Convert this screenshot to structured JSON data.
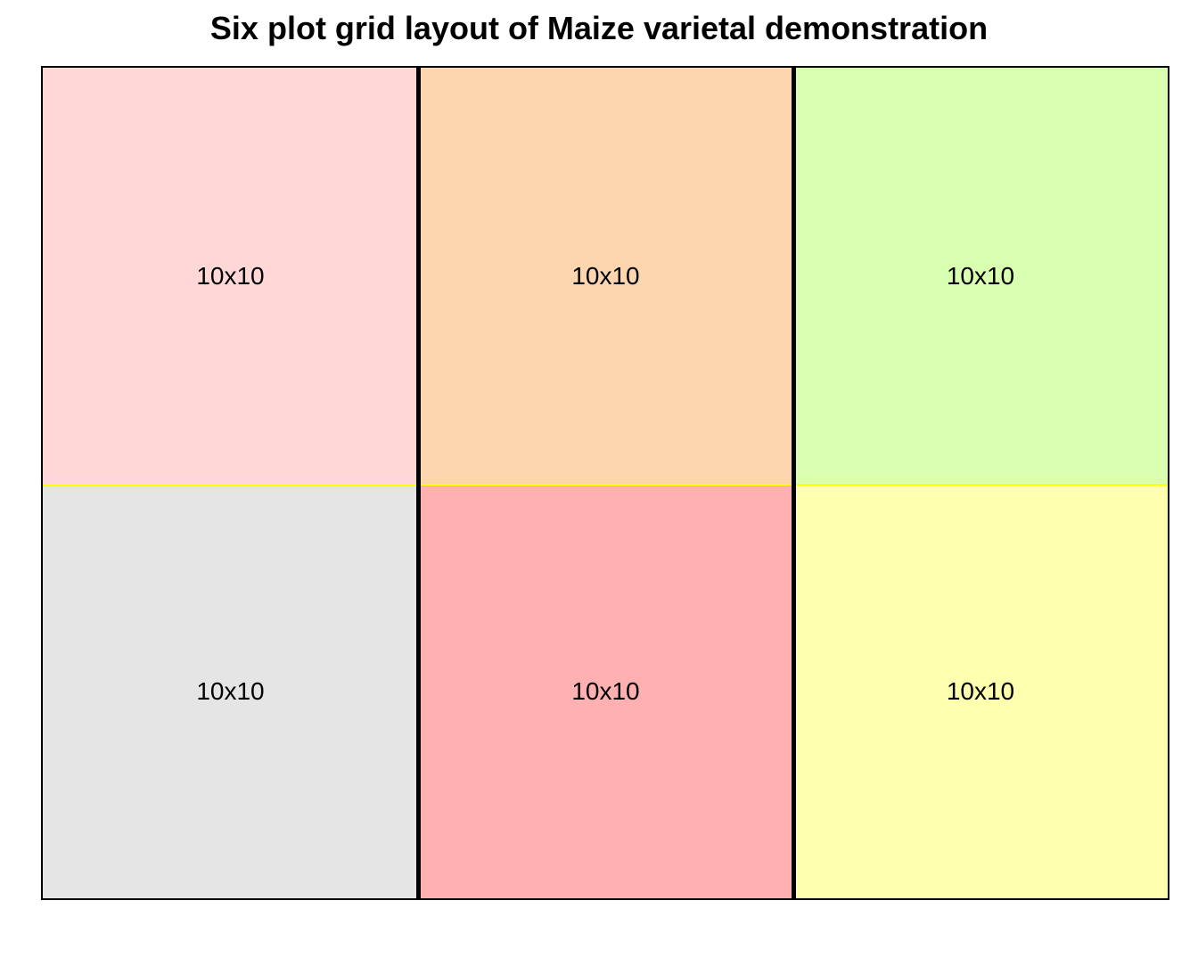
{
  "title": "Six plot grid layout of Maize varietal demonstration",
  "grid": {
    "rows": 2,
    "columns": 3,
    "row_divider_color": "#ffff00",
    "column_divider_color": "#000000",
    "border_color": "#000000"
  },
  "plots": [
    {
      "label": "10x10",
      "color": "#ffd7d7",
      "row": 1,
      "col": 1
    },
    {
      "label": "10x10",
      "color": "#fdd6b0",
      "row": 1,
      "col": 2
    },
    {
      "label": "10x10",
      "color": "#d9ffb0",
      "row": 1,
      "col": 3
    },
    {
      "label": "10x10",
      "color": "#e5e5e5",
      "row": 2,
      "col": 1
    },
    {
      "label": "10x10",
      "color": "#ffb0b0",
      "row": 2,
      "col": 2
    },
    {
      "label": "10x10",
      "color": "#ffffb0",
      "row": 2,
      "col": 3
    }
  ]
}
